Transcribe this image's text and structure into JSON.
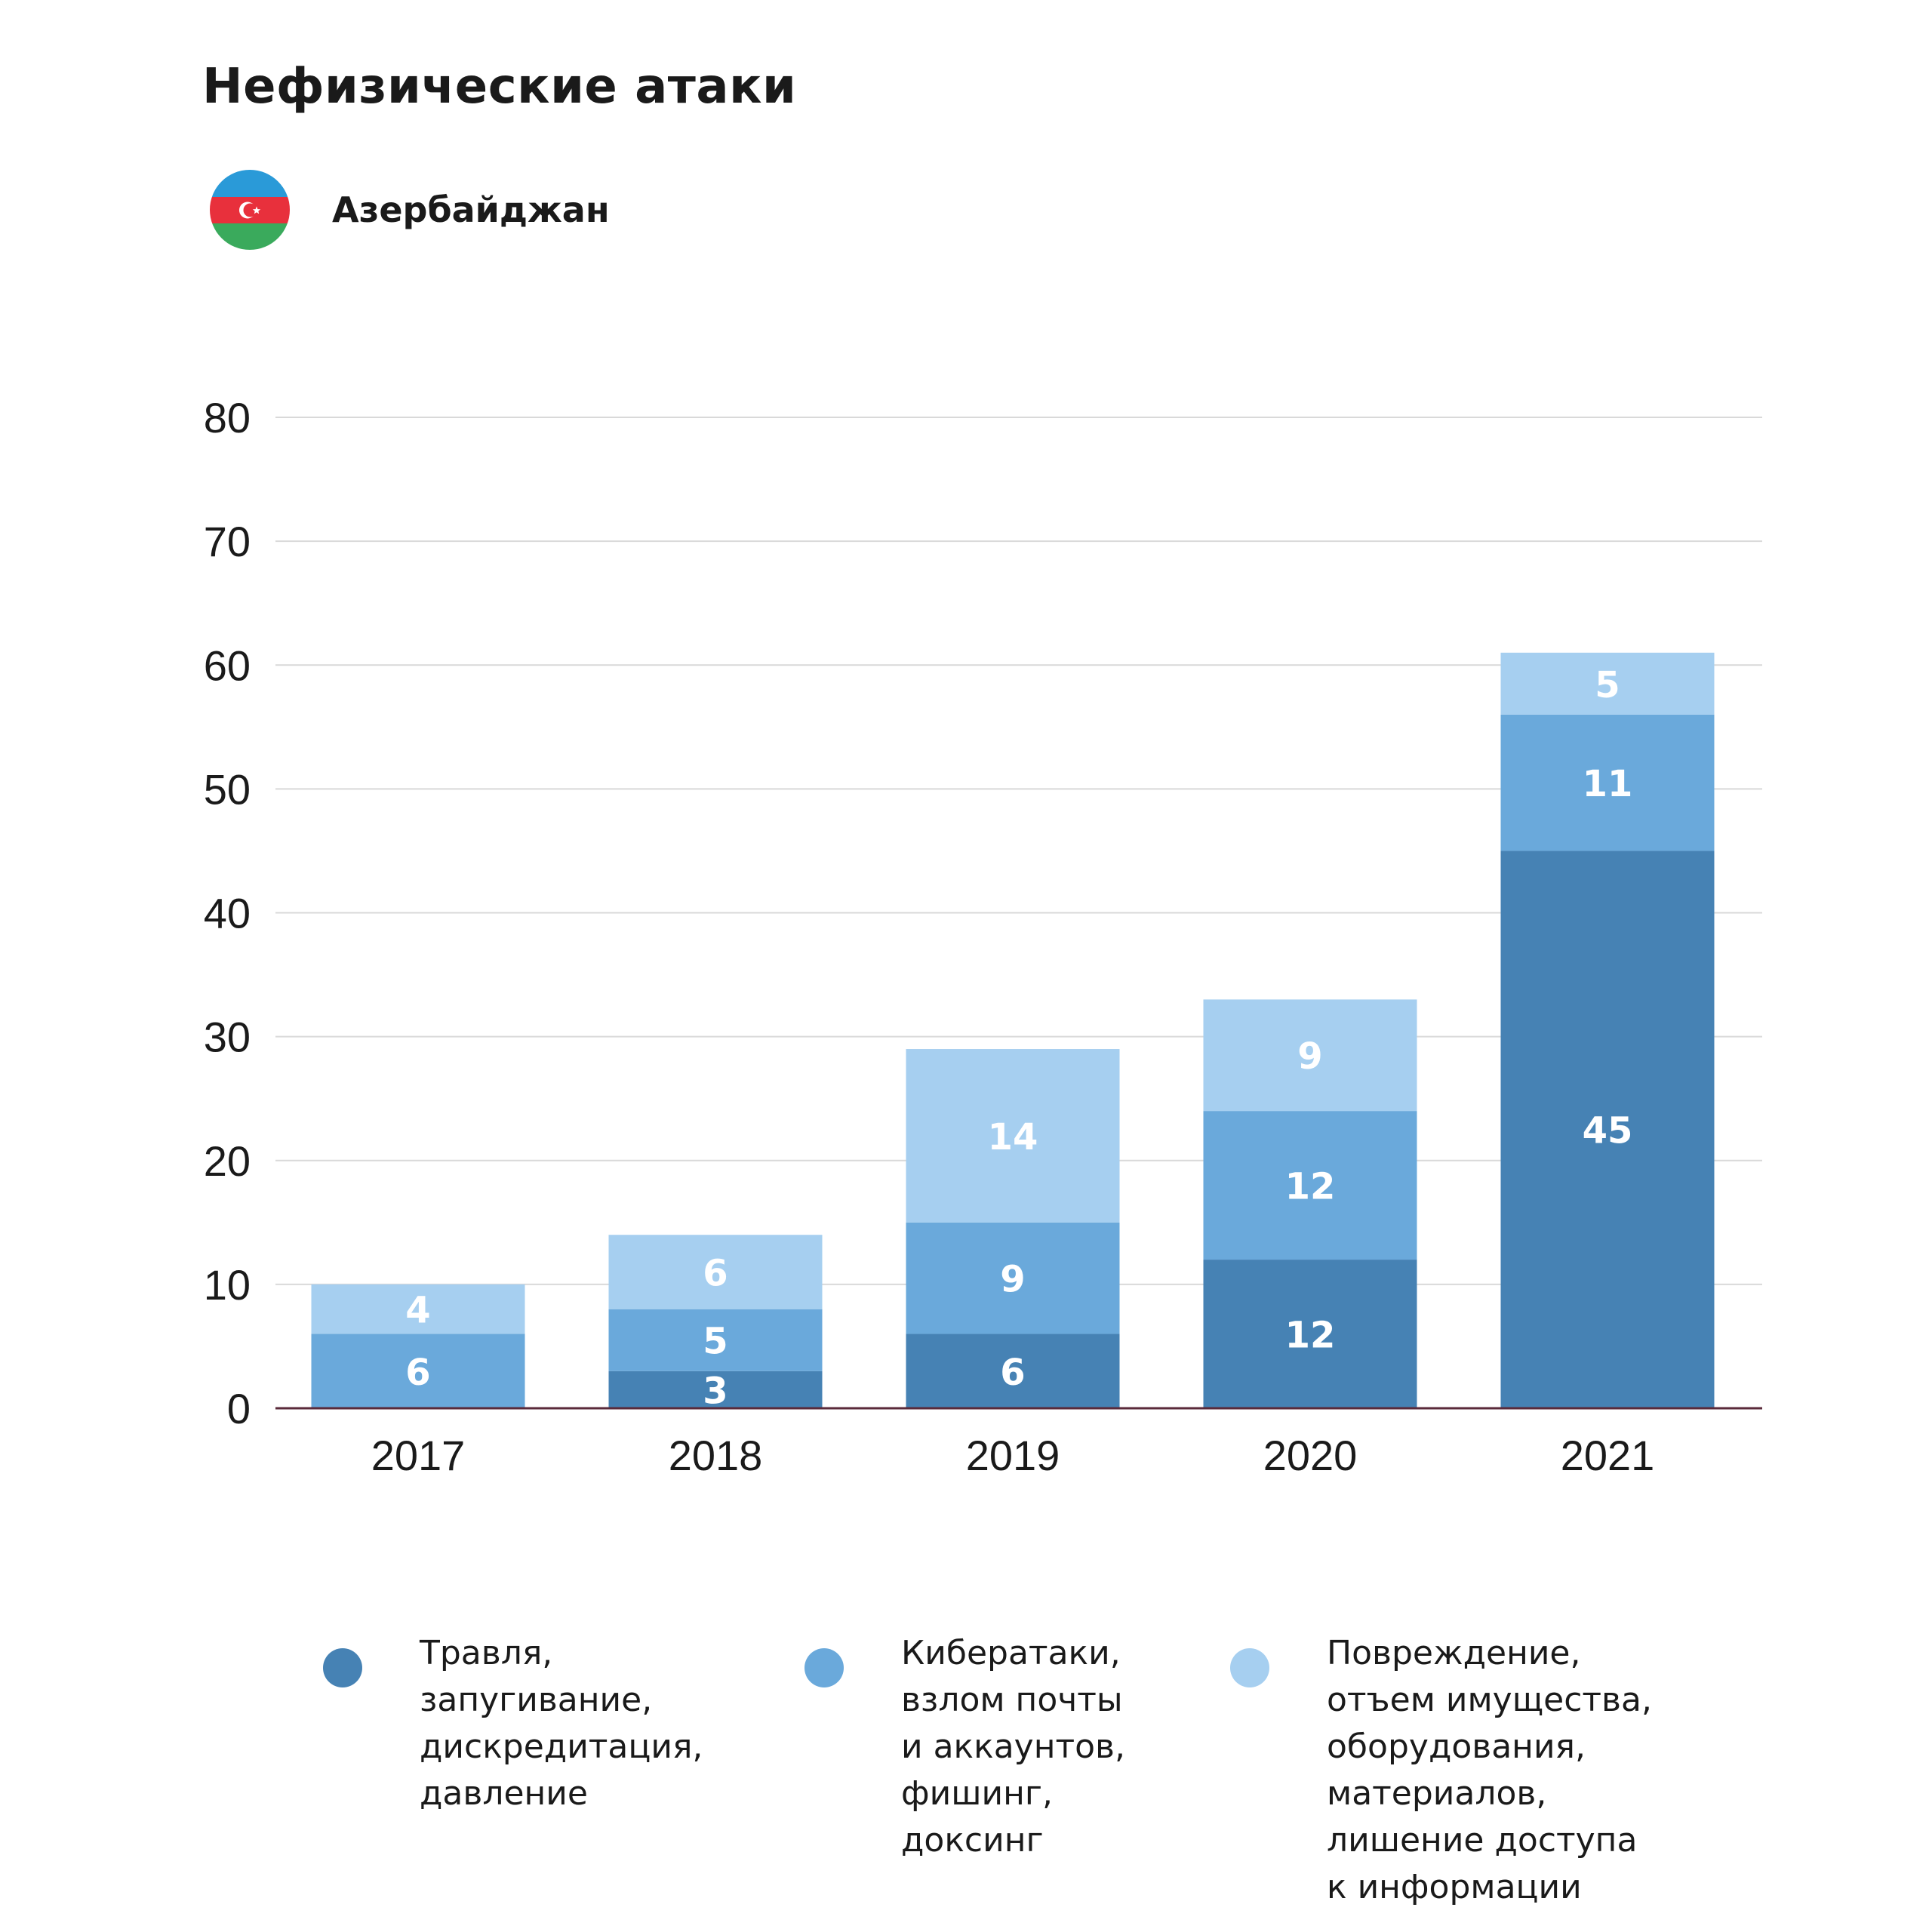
{
  "title": "Нефизические атаки",
  "country": {
    "name": "Азербайджан",
    "flag_icon": "azerbaijan-flag-icon",
    "flag_colors": [
      "#2a9ad8",
      "#e8303c",
      "#3aaa5c"
    ]
  },
  "colors": {
    "series": [
      "#4682b4",
      "#6aa9db",
      "#a6cff0"
    ],
    "grid": "#d9d9d9",
    "baseline": "#5a2a3a",
    "bar_label": "#ffffff",
    "axis_text": "#1a1a1a"
  },
  "chart_data": {
    "type": "bar",
    "stacked": true,
    "categories": [
      "2017",
      "2018",
      "2019",
      "2020",
      "2021"
    ],
    "series": [
      {
        "name": "Травля, запугивание, дискредитация, давление",
        "values": [
          0,
          3,
          6,
          12,
          45
        ]
      },
      {
        "name": "Кибератаки, взлом почты и аккаунтов, фишинг, доксинг",
        "values": [
          6,
          5,
          9,
          12,
          11
        ]
      },
      {
        "name": "Повреждение, отъем имущества, оборудования, материалов, лишение доступа к информации",
        "values": [
          4,
          6,
          14,
          9,
          5
        ]
      }
    ],
    "yticks": [
      "0",
      "10",
      "20",
      "30",
      "40",
      "50",
      "60",
      "70",
      "80"
    ],
    "ylim": [
      0,
      80
    ],
    "grid": true,
    "legend_position": "bottom"
  },
  "legend": [
    {
      "label": "Травля,\nзапугивание,\nдискредитация,\nдавление"
    },
    {
      "label": "Кибератаки,\nвзлом почты\nи аккаунтов,\nфишинг,\nдоксинг"
    },
    {
      "label": "Повреждение,\nотъем имущества,\nоборудования,\nматериалов,\nлишение доступа\nк информации"
    }
  ]
}
